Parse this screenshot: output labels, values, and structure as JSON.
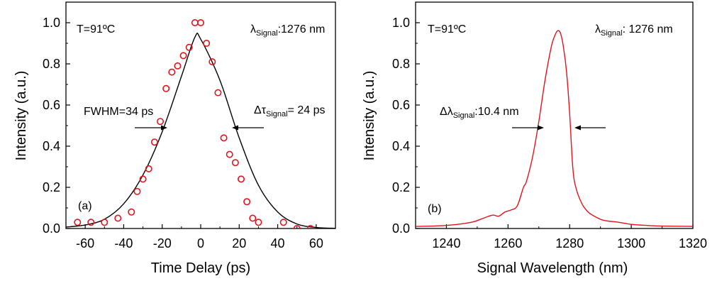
{
  "chart_data": [
    {
      "type": "scatter",
      "panel_label": "(a)",
      "xlabel": "Time Delay (ps)",
      "ylabel": "Intensity (a.u.)",
      "xlim": [
        -70,
        70
      ],
      "ylim": [
        0.0,
        1.1
      ],
      "xticks": [
        -60,
        -40,
        -20,
        0,
        20,
        40,
        60
      ],
      "yticks": [
        0.0,
        0.2,
        0.4,
        0.6,
        0.8,
        1.0
      ],
      "grid": false,
      "colors": {
        "markers": "#e0141e",
        "fit": "#000000"
      },
      "series": [
        {
          "kind": "markers",
          "x": [
            -64,
            -57,
            -50,
            -43,
            -36,
            -33,
            -30,
            -27,
            -24,
            -21,
            -18,
            -15,
            -12,
            -9,
            -6,
            -3,
            0,
            3,
            6,
            9,
            12,
            15,
            18,
            21,
            24,
            27,
            30,
            43,
            50,
            57
          ],
          "y": [
            0.03,
            0.03,
            0.03,
            0.05,
            0.08,
            0.18,
            0.24,
            0.29,
            0.42,
            0.52,
            0.68,
            0.76,
            0.79,
            0.84,
            0.88,
            1.0,
            1.0,
            0.9,
            0.81,
            0.66,
            0.44,
            0.36,
            0.32,
            0.24,
            0.13,
            0.05,
            0.03,
            0.03,
            0.0,
            0.0
          ]
        },
        {
          "kind": "fit-line",
          "x": [
            -70,
            -60,
            -50,
            -40,
            -30,
            -20,
            -10,
            -3,
            0,
            10,
            20,
            30,
            40,
            50,
            60,
            70
          ],
          "y": [
            0.007,
            0.017,
            0.045,
            0.12,
            0.26,
            0.47,
            0.74,
            0.93,
            0.92,
            0.72,
            0.44,
            0.21,
            0.08,
            0.022,
            0.005,
            0.001
          ]
        }
      ],
      "annotations": {
        "temperature": "T=91ºC",
        "wavelength_symbol": "λ",
        "wavelength_sub": "Signal",
        "wavelength_value": ":1276 nm",
        "fwhm": "FWHM=34 ps",
        "dtau_symbol": "Δτ",
        "dtau_sub": "Signal",
        "dtau_value": "= 24 ps"
      }
    },
    {
      "type": "line",
      "panel_label": "(b)",
      "xlabel": "Signal Wavelength (nm)",
      "ylabel": "Intensity (a.u.)",
      "xlim": [
        1230,
        1320
      ],
      "ylim": [
        0.0,
        1.1
      ],
      "xticks": [
        1240,
        1260,
        1280,
        1300,
        1320
      ],
      "yticks": [
        0.0,
        0.2,
        0.4,
        0.6,
        0.8,
        1.0
      ],
      "grid": false,
      "colors": {
        "line": "#e0141e"
      },
      "series": [
        {
          "x": [
            1230,
            1240,
            1248,
            1252,
            1255,
            1257,
            1259,
            1261,
            1263,
            1265,
            1266,
            1268,
            1270,
            1272,
            1274,
            1275,
            1276,
            1277,
            1278,
            1279,
            1280,
            1281,
            1282,
            1284,
            1286,
            1288,
            1291,
            1296,
            1300,
            1305,
            1310,
            1320
          ],
          "y": [
            0.01,
            0.015,
            0.03,
            0.05,
            0.065,
            0.06,
            0.08,
            0.09,
            0.11,
            0.2,
            0.23,
            0.35,
            0.52,
            0.72,
            0.88,
            0.93,
            0.96,
            0.95,
            0.88,
            0.76,
            0.56,
            0.3,
            0.2,
            0.12,
            0.08,
            0.06,
            0.04,
            0.03,
            0.02,
            0.015,
            0.012,
            0.01
          ]
        }
      ],
      "annotations": {
        "temperature": "T=91ºC",
        "wavelength_symbol": "λ",
        "wavelength_sub": "Signal",
        "wavelength_value": ": 1276 nm",
        "dlambda_symbol": "Δλ",
        "dlambda_sub": "Signal",
        "dlambda_value": ":10.4 nm"
      }
    }
  ]
}
